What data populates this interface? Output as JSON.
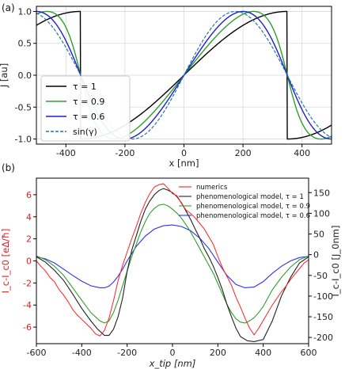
{
  "chart_data": [
    {
      "panel": "(a)",
      "type": "line",
      "xlabel": "x [nm]",
      "ylabel": "J [au]",
      "xlim": [
        -500,
        500
      ],
      "ylim": [
        -1.08,
        1.08
      ],
      "xticks": [
        "-400",
        "-200",
        "0",
        "200",
        "400"
      ],
      "yticks": [
        "-1.0",
        "-0.5",
        "0.0",
        "0.5",
        "1.0"
      ],
      "grid": true,
      "legend_position": "lower-left",
      "period_nm": 700,
      "series": [
        {
          "name": "τ = 1",
          "tau": 1.0,
          "color": "#000000",
          "style": "solid"
        },
        {
          "name": "τ = 0.9",
          "tau": 0.9,
          "color": "#2ca02c",
          "style": "solid"
        },
        {
          "name": "τ = 0.6",
          "tau": 0.6,
          "color": "#1f1fd0",
          "style": "solid"
        },
        {
          "name": "sin(γ)",
          "tau": 0.0,
          "color": "#1f77b4",
          "style": "dashed"
        }
      ]
    },
    {
      "panel": "(b)",
      "type": "line",
      "xlabel": "x_tip [nm]",
      "ylabel_left": "I_c-I_c0 [eΔ/ħ]",
      "ylabel_right": "I_c-I_c0 [J_0nm]",
      "xlim": [
        -600,
        600
      ],
      "ylim_left": [
        -7.5,
        7.5
      ],
      "ylim_right": [
        -215,
        185
      ],
      "xticks": [
        "-600",
        "-400",
        "-200",
        "0",
        "200",
        "400",
        "600"
      ],
      "yticks_left": [
        "-6",
        "-4",
        "-2",
        "0",
        "2",
        "4",
        "6"
      ],
      "yticks_right": [
        "-200",
        "-150",
        "-100",
        "-50",
        "0",
        "50",
        "100",
        "150"
      ],
      "legend_position": "top-right",
      "series": [
        {
          "name": "numerics",
          "color": "#ff2020",
          "axis": "left",
          "x": [
            -600,
            -580,
            -560,
            -540,
            -520,
            -500,
            -480,
            -460,
            -440,
            -420,
            -400,
            -380,
            -360,
            -340,
            -320,
            -300,
            -280,
            -260,
            -240,
            -220,
            -200,
            -180,
            -160,
            -140,
            -120,
            -100,
            -80,
            -60,
            -40,
            -20,
            0,
            20,
            40,
            60,
            80,
            100,
            120,
            140,
            160,
            180,
            200,
            220,
            240,
            260,
            280,
            300,
            320,
            340,
            360,
            380,
            400,
            420,
            440,
            460,
            480,
            500,
            520,
            540,
            560,
            580,
            600
          ],
          "y": [
            0.0,
            -0.5,
            -0.9,
            -1.5,
            -1.9,
            -2.6,
            -3.1,
            -3.7,
            -4.4,
            -4.9,
            -5.3,
            -5.7,
            -6.1,
            -6.6,
            -6.8,
            -6.3,
            -5.2,
            -3.6,
            -1.8,
            -0.4,
            0.8,
            2.0,
            3.1,
            4.3,
            5.3,
            6.1,
            6.7,
            6.9,
            7.0,
            6.6,
            6.1,
            5.9,
            5.2,
            4.6,
            4.3,
            3.9,
            3.4,
            2.9,
            2.2,
            1.5,
            0.4,
            -0.6,
            -1.4,
            -2.2,
            -3.3,
            -4.2,
            -5.2,
            -6.1,
            -6.7,
            -6.1,
            -5.4,
            -4.7,
            -4.0,
            -3.4,
            -2.8,
            -2.3,
            -1.7,
            -1.2,
            -0.7,
            -0.2,
            0.1
          ]
        },
        {
          "name": "phenomenological model, τ = 1",
          "color": "#222222",
          "axis": "right",
          "x": [
            -600,
            -560,
            -520,
            -480,
            -440,
            -400,
            -360,
            -330,
            -300,
            -280,
            -260,
            -240,
            -220,
            -200,
            -180,
            -160,
            -140,
            -120,
            -100,
            -80,
            -60,
            -40,
            -20,
            0,
            20,
            40,
            60,
            80,
            100,
            120,
            140,
            160,
            180,
            200,
            220,
            240,
            260,
            280,
            300,
            330,
            360,
            400,
            440,
            480,
            520,
            560,
            600
          ],
          "y": [
            -5,
            -18,
            -38,
            -62,
            -95,
            -130,
            -160,
            -180,
            -195,
            -195,
            -180,
            -150,
            -105,
            -40,
            10,
            45,
            80,
            110,
            130,
            145,
            155,
            160,
            156,
            150,
            140,
            125,
            105,
            85,
            62,
            40,
            15,
            -5,
            -28,
            -55,
            -85,
            -120,
            -150,
            -178,
            -198,
            -208,
            -210,
            -205,
            -160,
            -100,
            -55,
            -20,
            -5
          ]
        },
        {
          "name": "phenomenological model, τ = 0.9",
          "color": "#2ca02c",
          "axis": "right",
          "x": [
            -600,
            -560,
            -520,
            -480,
            -440,
            -400,
            -360,
            -320,
            -300,
            -280,
            -260,
            -240,
            -220,
            -200,
            -180,
            -160,
            -140,
            -120,
            -100,
            -80,
            -60,
            -40,
            -20,
            0,
            20,
            40,
            60,
            80,
            100,
            120,
            140,
            160,
            180,
            200,
            220,
            240,
            260,
            280,
            300,
            320,
            340,
            360,
            380,
            400,
            420,
            440,
            480,
            520,
            560,
            600
          ],
          "y": [
            -3,
            -12,
            -28,
            -50,
            -80,
            -110,
            -140,
            -160,
            -165,
            -160,
            -140,
            -110,
            -75,
            -40,
            -5,
            25,
            55,
            80,
            100,
            112,
            120,
            122,
            118,
            110,
            100,
            88,
            72,
            55,
            35,
            15,
            -5,
            -25,
            -45,
            -70,
            -95,
            -120,
            -140,
            -155,
            -163,
            -165,
            -160,
            -152,
            -140,
            -125,
            -105,
            -85,
            -55,
            -30,
            -12,
            -3
          ]
        },
        {
          "name": "phenomenological model, τ = 0.6",
          "color": "#3030ee",
          "axis": "right",
          "x": [
            -600,
            -560,
            -520,
            -480,
            -440,
            -400,
            -360,
            -320,
            -300,
            -280,
            -260,
            -240,
            -220,
            -200,
            -160,
            -120,
            -80,
            -40,
            0,
            40,
            80,
            120,
            160,
            200,
            240,
            280,
            320,
            360,
            400,
            440,
            480,
            520,
            560,
            600
          ],
          "y": [
            -5,
            -10,
            -20,
            -35,
            -50,
            -64,
            -75,
            -80,
            -80,
            -76,
            -66,
            -52,
            -35,
            -15,
            20,
            45,
            62,
            70,
            72,
            68,
            58,
            40,
            15,
            -18,
            -50,
            -72,
            -80,
            -78,
            -65,
            -45,
            -28,
            -15,
            -7,
            -4
          ]
        }
      ]
    }
  ]
}
